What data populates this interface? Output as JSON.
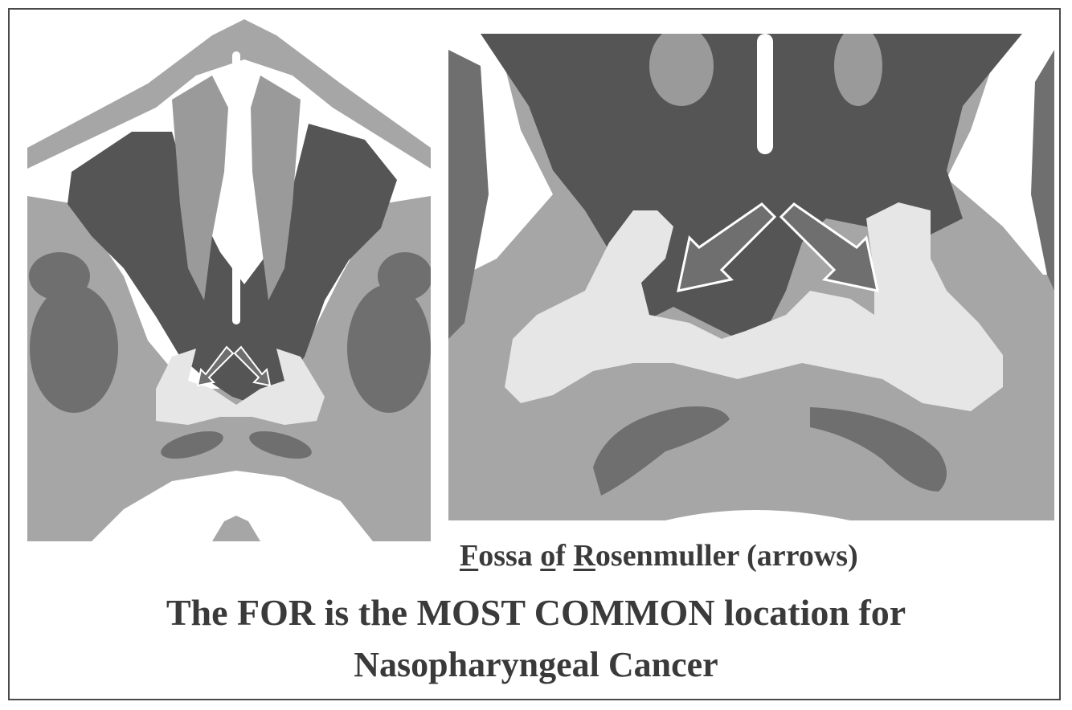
{
  "caption": {
    "fossa_initial": "F",
    "fossa_rest": "ossa ",
    "of_initial": "o",
    "of_rest": "f ",
    "rosen_initial": "R",
    "rosen_rest": "osenmuller (arrows)"
  },
  "statement": {
    "line1": "The FOR is the MOST COMMON location for",
    "line2": "Nasopharyngeal Cancer"
  },
  "colors": {
    "background": "#ffffff",
    "muscle_light_gray": "#a6a6a6",
    "mucosa_pale": "#e6e6e6",
    "airway_dark": "#555555",
    "muscle_mid": "#6f6f6f",
    "turbinate_gray": "#9a9a9a"
  },
  "icons": [
    "arrow-left-fossa-icon",
    "arrow-right-fossa-icon"
  ]
}
